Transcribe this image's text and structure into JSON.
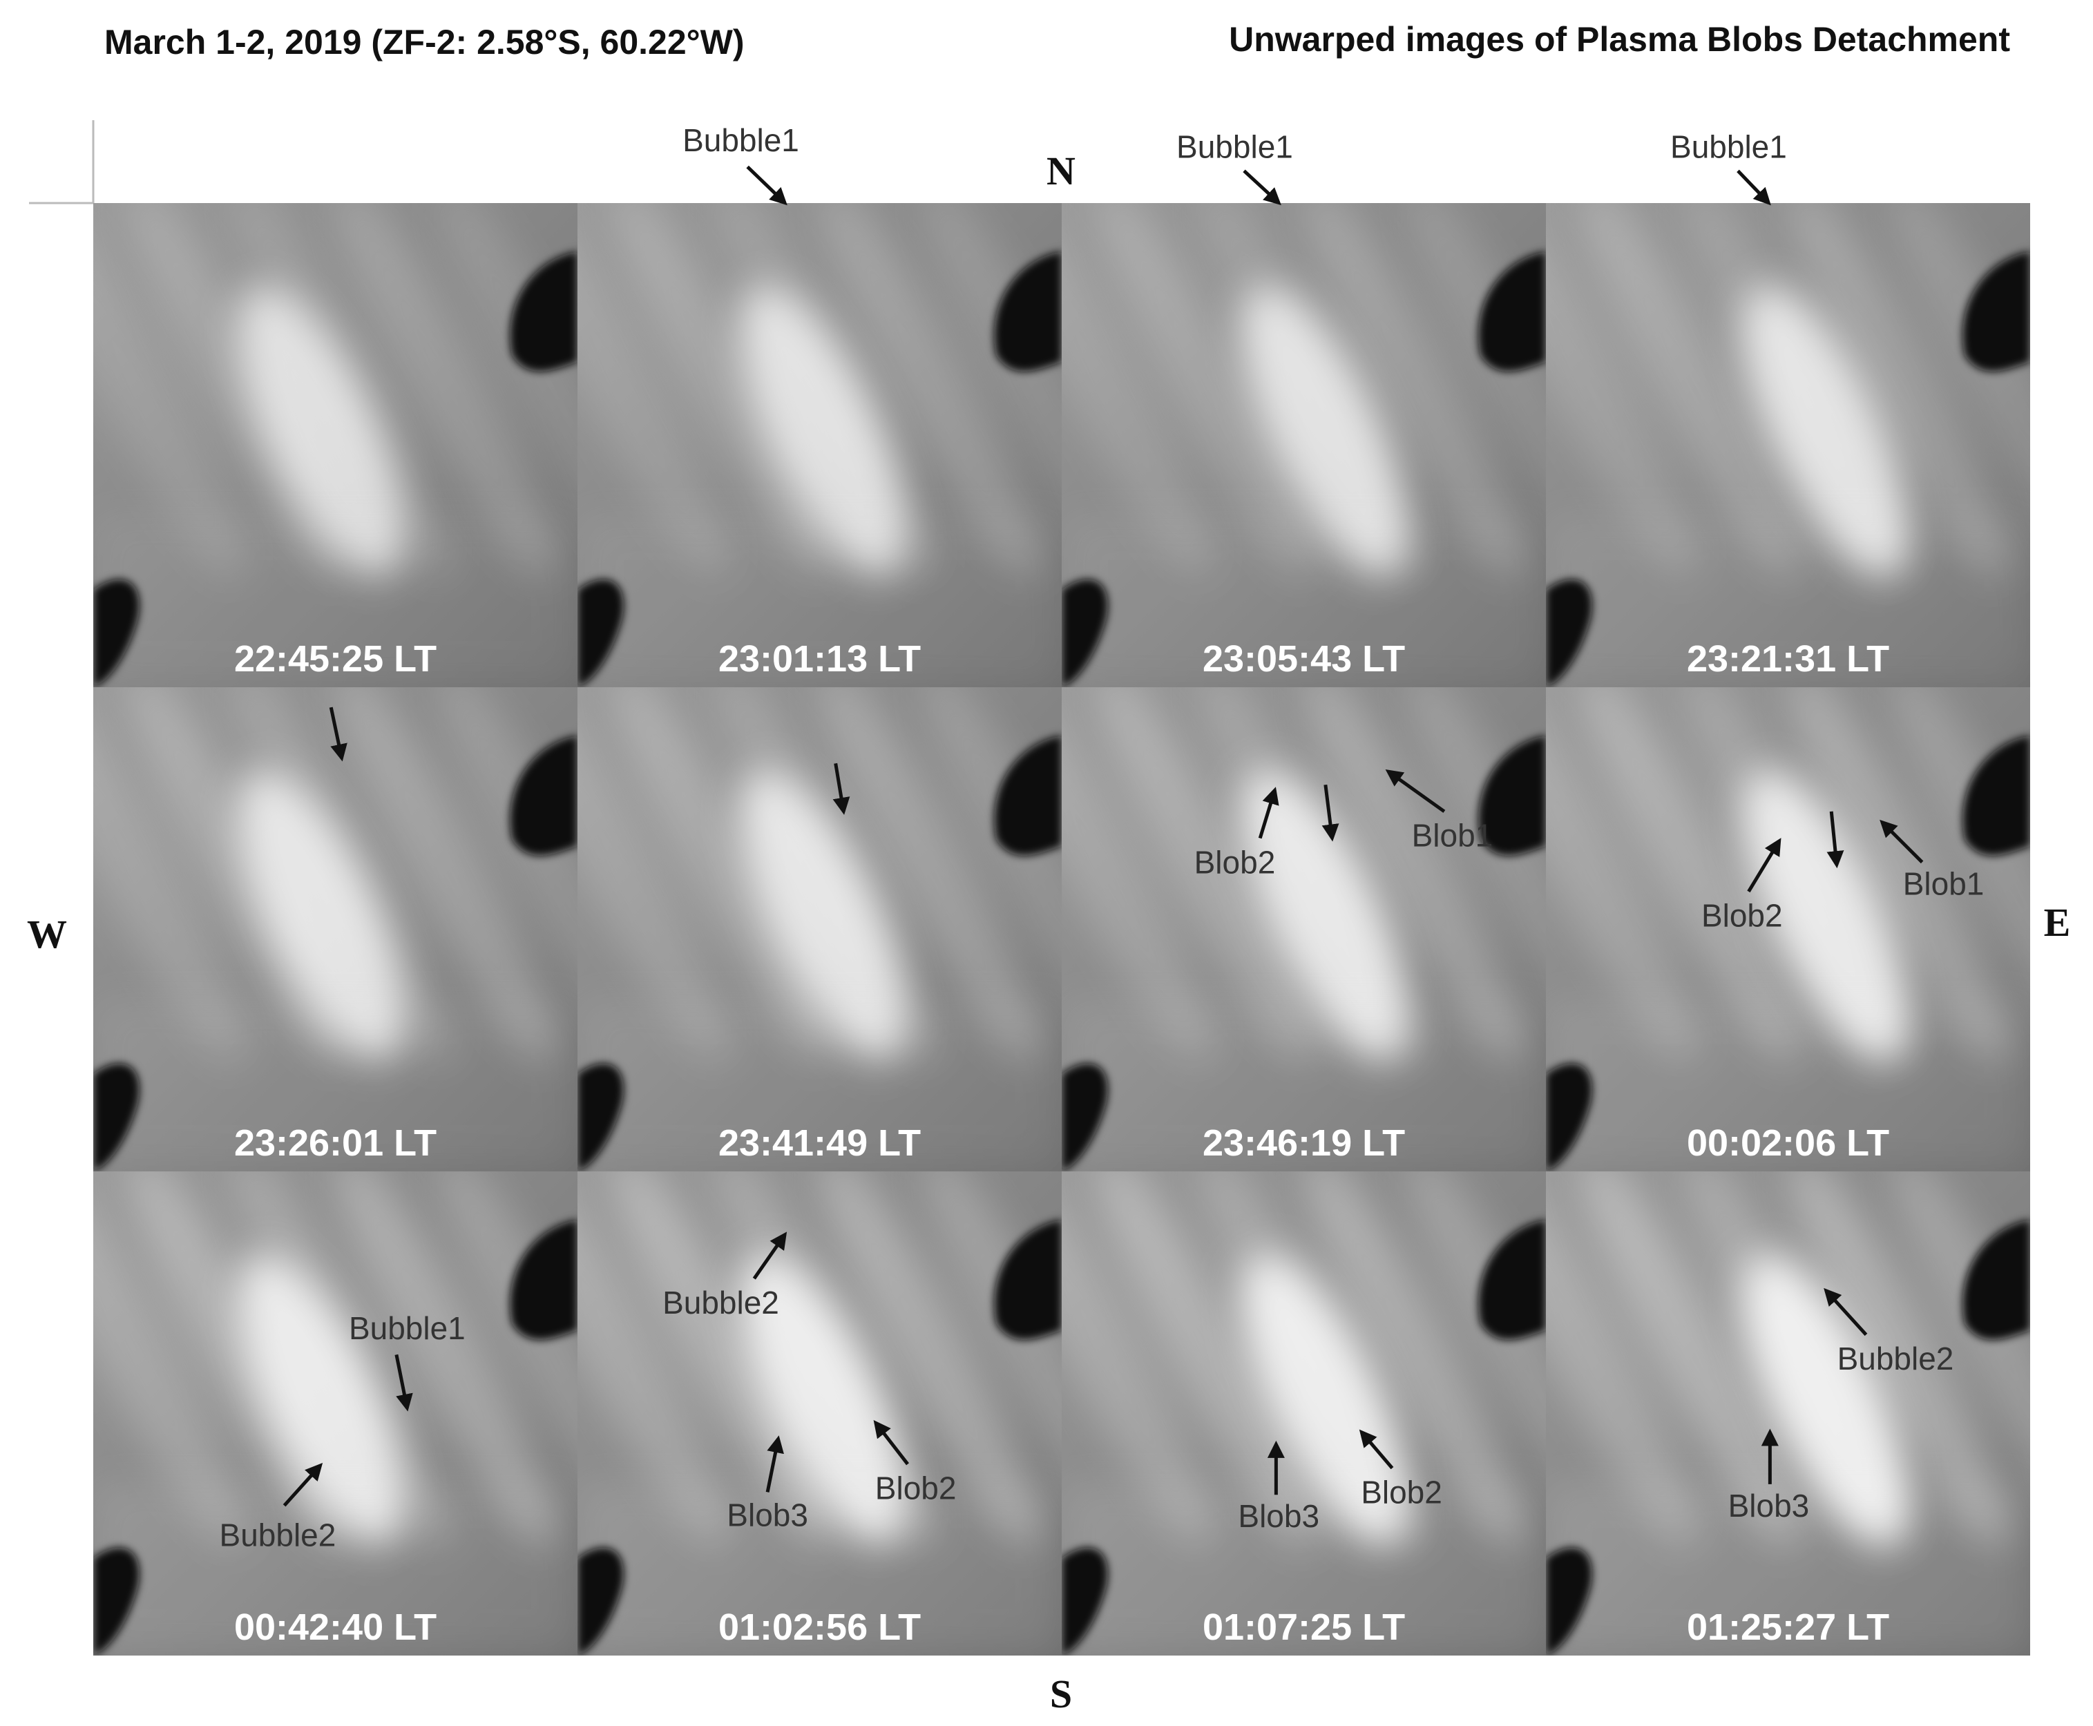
{
  "header": {
    "left_title": "March 1-2, 2019 (ZF-2: 2.58°S, 60.22°W)",
    "right_title": "Unwarped images of Plasma Blobs Detachment"
  },
  "directions": {
    "north": "N",
    "south": "S",
    "west": "W",
    "east": "E"
  },
  "panels": [
    {
      "time": "22:45:25 LT",
      "annotations": []
    },
    {
      "time": "23:01:13 LT",
      "annotations": [
        "Bubble1"
      ]
    },
    {
      "time": "23:05:43 LT",
      "annotations": [
        "Bubble1"
      ]
    },
    {
      "time": "23:21:31 LT",
      "annotations": [
        "Bubble1"
      ]
    },
    {
      "time": "23:26:01 LT",
      "annotations": []
    },
    {
      "time": "23:41:49 LT",
      "annotations": []
    },
    {
      "time": "23:46:19 LT",
      "annotations": [
        "Blob2",
        "Blob1"
      ]
    },
    {
      "time": "00:02:06 LT",
      "annotations": [
        "Blob2",
        "Blob1"
      ]
    },
    {
      "time": "00:42:40 LT",
      "annotations": [
        "Bubble1",
        "Bubble2"
      ]
    },
    {
      "time": "01:02:56 LT",
      "annotations": [
        "Bubble2",
        "Blob3",
        "Blob2"
      ]
    },
    {
      "time": "01:07:25 LT",
      "annotations": [
        "Blob3",
        "Blob2"
      ]
    },
    {
      "time": "01:25:27 LT",
      "annotations": [
        "Bubble2",
        "Blob3"
      ]
    }
  ]
}
